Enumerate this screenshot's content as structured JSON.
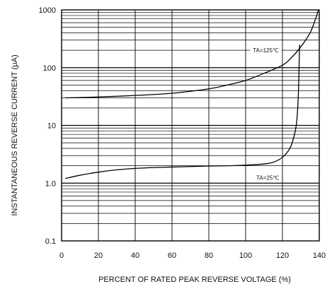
{
  "chart_data": {
    "type": "line",
    "title": "",
    "xlabel": "PERCENT OF RATED PEAK REVERSE VOLTAGE (%)",
    "ylabel": "INSTANTANEOUS REVERSE CURRENT (μA)",
    "xlim": [
      0,
      140
    ],
    "ylim": [
      0.1,
      1000
    ],
    "yscale": "log",
    "x_ticks": [
      0,
      20,
      40,
      60,
      80,
      100,
      120,
      140
    ],
    "x_tick_labels": [
      "0",
      "20",
      "40",
      "60",
      "80",
      "100",
      "120",
      "140"
    ],
    "y_ticks": [
      0.1,
      1,
      10,
      100,
      1000
    ],
    "y_tick_labels": [
      "0.1",
      "1.0",
      "10",
      "100",
      "1000"
    ],
    "grid": true,
    "series": [
      {
        "name": "TA=125°C",
        "color": "#000000",
        "x": [
          2,
          20,
          40,
          60,
          80,
          90,
          100,
          110,
          120,
          125,
          130,
          135,
          138,
          139.5
        ],
        "y": [
          30,
          31,
          33,
          36,
          43,
          50,
          60,
          80,
          110,
          150,
          230,
          400,
          700,
          1000
        ]
      },
      {
        "name": "TA=25°C",
        "color": "#000000",
        "x": [
          2,
          10,
          20,
          30,
          40,
          50,
          60,
          70,
          80,
          90,
          100,
          110,
          115,
          120,
          124,
          126,
          127.5,
          128.3,
          128.8,
          129.1,
          129.3
        ],
        "y": [
          1.2,
          1.37,
          1.55,
          1.7,
          1.8,
          1.86,
          1.9,
          1.94,
          1.98,
          2.0,
          2.05,
          2.15,
          2.3,
          2.8,
          4.0,
          6.0,
          10,
          20,
          50,
          130,
          250
        ]
      }
    ],
    "annotations": [
      {
        "text": "TA=125℃",
        "x": 111,
        "y": 200
      },
      {
        "text": "TA=25℃",
        "x": 112,
        "y": 1.25
      }
    ]
  }
}
